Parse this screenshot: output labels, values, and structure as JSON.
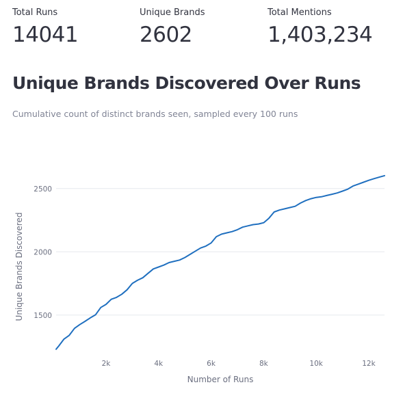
{
  "metrics": [
    {
      "label": "Total Runs",
      "value": "14041"
    },
    {
      "label": "Unique Brands",
      "value": "2602"
    },
    {
      "label": "Total Mentions",
      "value": "1,403,234"
    }
  ],
  "chart": {
    "title": "Unique Brands Discovered Over Runs",
    "subtitle": "Cumulative count of distinct brands seen, sampled every 100 runs"
  },
  "colors": {
    "line": "#1f6fbf",
    "grid": "#e6e8ee"
  },
  "chart_data": {
    "type": "line",
    "xlabel": "Number of Runs",
    "ylabel": "Unique Brands Discovered",
    "xlim": [
      100,
      12600
    ],
    "ylim": [
      1180,
      2650
    ],
    "x_ticks": [
      2000,
      4000,
      6000,
      8000,
      10000,
      12000
    ],
    "x_tick_labels": [
      "2k",
      "4k",
      "6k",
      "8k",
      "10k",
      "12k"
    ],
    "y_ticks": [
      1500,
      2000,
      2500
    ],
    "y_tick_labels": [
      "1500",
      "2000",
      "2500"
    ],
    "grid": true,
    "series": [
      {
        "x": [
          100,
          200,
          400,
          600,
          800,
          1000,
          1200,
          1400,
          1600,
          1800,
          2000,
          2200,
          2400,
          2600,
          2800,
          3000,
          3200,
          3400,
          3600,
          3800,
          4000,
          4200,
          4400,
          4600,
          4800,
          5000,
          5200,
          5400,
          5600,
          5800,
          6000,
          6200,
          6400,
          6600,
          6800,
          7000,
          7200,
          7400,
          7600,
          7800,
          8000,
          8200,
          8400,
          8600,
          8800,
          9000,
          9200,
          9400,
          9600,
          9800,
          10000,
          10200,
          10400,
          10600,
          10800,
          11000,
          11200,
          11400,
          11600,
          11800,
          12000,
          12200,
          12400,
          12600
        ],
        "values": [
          1230,
          1255,
          1310,
          1340,
          1395,
          1425,
          1450,
          1478,
          1502,
          1560,
          1585,
          1625,
          1640,
          1665,
          1700,
          1750,
          1775,
          1795,
          1830,
          1865,
          1880,
          1895,
          1915,
          1925,
          1935,
          1955,
          1980,
          2005,
          2030,
          2045,
          2070,
          2120,
          2140,
          2150,
          2160,
          2175,
          2195,
          2205,
          2215,
          2220,
          2230,
          2265,
          2315,
          2330,
          2340,
          2350,
          2360,
          2385,
          2405,
          2420,
          2430,
          2435,
          2445,
          2455,
          2465,
          2480,
          2495,
          2520,
          2535,
          2550,
          2565,
          2578,
          2590,
          2602
        ]
      }
    ]
  }
}
